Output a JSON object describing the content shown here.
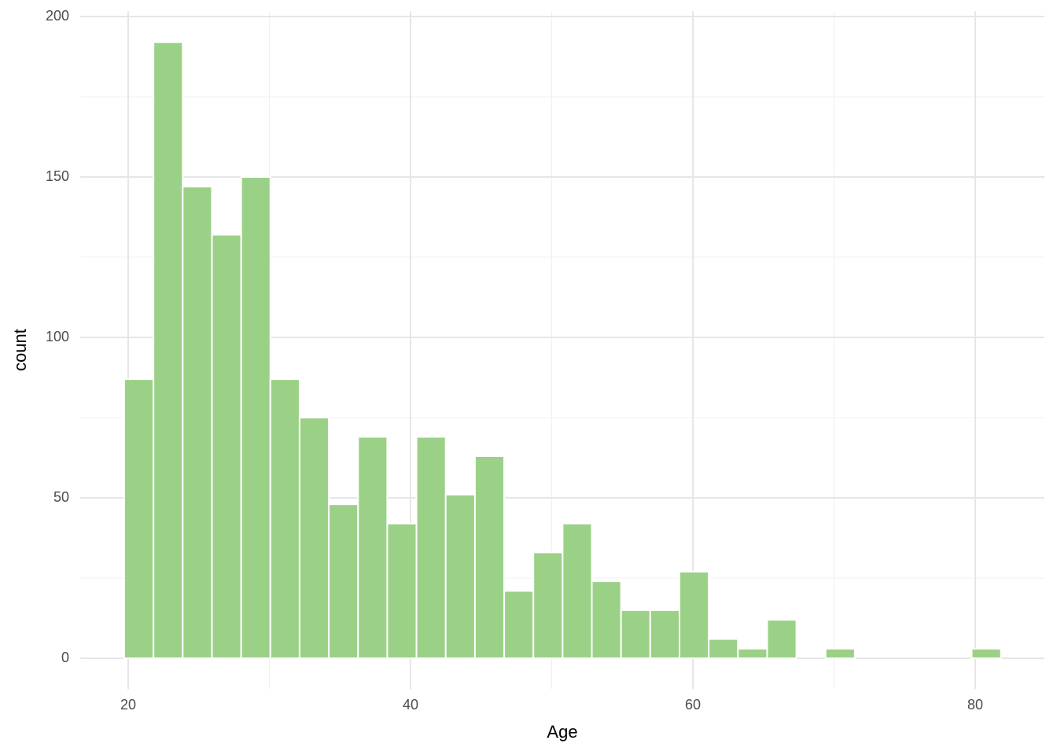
{
  "chart_data": {
    "type": "histogram",
    "x_label": "Age",
    "y_label": "count",
    "bins": [
      19.72,
      21.79,
      23.86,
      25.93,
      28.0,
      30.07,
      32.14,
      34.21,
      36.28,
      38.35,
      40.42,
      42.49,
      44.56,
      46.63,
      48.7,
      50.77,
      52.84,
      54.91,
      56.98,
      59.05,
      61.12,
      63.19,
      65.26,
      67.33,
      69.4,
      71.47,
      73.54,
      75.61,
      77.68,
      79.75,
      81.82
    ],
    "values": [
      87,
      192,
      147,
      132,
      150,
      87,
      75,
      48,
      69,
      42,
      69,
      51,
      63,
      21,
      33,
      42,
      24,
      15,
      15,
      27,
      6,
      3,
      12,
      0,
      3,
      0,
      0,
      0,
      0,
      3
    ],
    "color": "#9bd187",
    "xlim": [
      16.6,
      84.9
    ],
    "xticks": [
      20,
      40,
      60,
      80
    ],
    "x_minor_ticks": [
      30,
      50,
      70
    ],
    "ylim": [
      -9.6,
      201.6
    ],
    "yticks": [
      0,
      50,
      100,
      150,
      200
    ],
    "y_minor_ticks": [
      25,
      75,
      125,
      175
    ],
    "grid": true
  }
}
